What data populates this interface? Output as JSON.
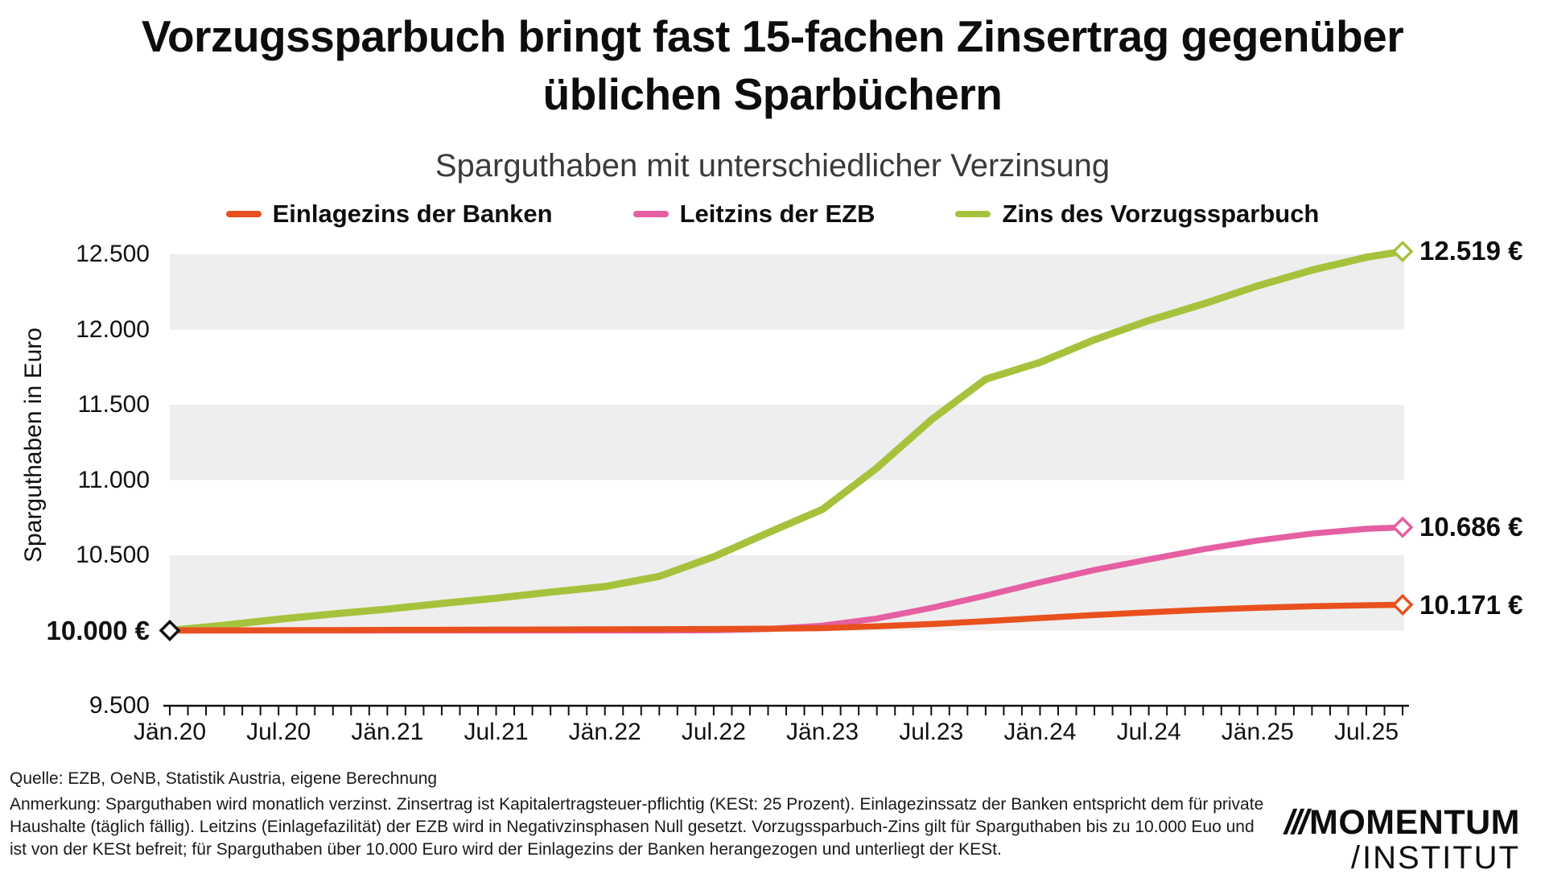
{
  "title_line1": "Vorzugssparbuch bringt fast 15-fachen Zinsertrag gegenüber",
  "title_line2": "üblichen Sparbüchern",
  "footer": {
    "source": "Quelle: EZB, OeNB, Statistik Austria, eigene Berechnung",
    "note": "Anmerkung: Sparguthaben wird monatlich verzinst. Zinsertrag ist Kapitalertragsteuer-pflichtig (KESt: 25 Prozent). Einlagezinssatz der Banken entspricht dem für private Haushalte (täglich fällig). Leitzins (Einlagefazilität) der EZB wird in Negativzinsphasen Null gesetzt. Vorzugssparbuch-Zins gilt für Sparguthaben bis zu 10.000 Euo und ist von der KESt befreit; für Sparguthaben über 10.000 Euro wird der Einlagezins der Banken herangezogen und unterliegt der KESt."
  },
  "logo": {
    "slashes": "///",
    "wordmark": "MOMENTUM",
    "unit_slash": "/",
    "unit": "INSTITUT"
  },
  "chart_data": {
    "type": "line",
    "title": "Sparguthaben mit unterschiedlicher Verzinsung",
    "ylabel": "Sparguthaben in Euro",
    "ylim": [
      9500,
      12500
    ],
    "band_color": "#eeeeee",
    "bands": [
      [
        12000,
        12500
      ],
      [
        11000,
        11500
      ],
      [
        10000,
        10500
      ]
    ],
    "x_unit": "Monate ab Jän.20",
    "x": [
      0,
      3,
      6,
      9,
      12,
      15,
      18,
      21,
      24,
      27,
      30,
      33,
      36,
      39,
      42,
      45,
      48,
      51,
      54,
      57,
      60,
      63,
      66,
      68
    ],
    "xticks": [
      {
        "month": 0,
        "label": "Jän.20"
      },
      {
        "month": 6,
        "label": "Jul.20"
      },
      {
        "month": 12,
        "label": "Jän.21"
      },
      {
        "month": 18,
        "label": "Jul.21"
      },
      {
        "month": 24,
        "label": "Jän.22"
      },
      {
        "month": 30,
        "label": "Jul.22"
      },
      {
        "month": 36,
        "label": "Jän.23"
      },
      {
        "month": 42,
        "label": "Jul.23"
      },
      {
        "month": 48,
        "label": "Jän.24"
      },
      {
        "month": 54,
        "label": "Jul.24"
      },
      {
        "month": 60,
        "label": "Jän.25"
      },
      {
        "month": 66,
        "label": "Jul.25"
      }
    ],
    "yticks": [
      {
        "value": 9500,
        "label": "9.500"
      },
      {
        "value": 10000,
        "label": "10.000 €",
        "major": true
      },
      {
        "value": 10500,
        "label": "10.500"
      },
      {
        "value": 11000,
        "label": "11.000"
      },
      {
        "value": 11500,
        "label": "11.500"
      },
      {
        "value": 12000,
        "label": "12.000"
      },
      {
        "value": 12500,
        "label": "12.500"
      }
    ],
    "start_marker": {
      "month": 0,
      "value": 10000,
      "label": "10.000 €",
      "color": "#111111"
    },
    "series": [
      {
        "id": "einlagezins-banken",
        "name": "Einlagezins der Banken",
        "color": "#e8501e",
        "end_label": "10.171 €",
        "values": [
          10000,
          10001,
          10002,
          10003,
          10004,
          10005,
          10006,
          10007,
          10008,
          10009,
          10010,
          10012,
          10016,
          10028,
          10043,
          10062,
          10083,
          10103,
          10121,
          10138,
          10151,
          10161,
          10168,
          10171
        ]
      },
      {
        "id": "leitzins-ezb",
        "name": "Leitzins der EZB",
        "color": "#e55fa2",
        "end_label": "10.686 €",
        "values": [
          10000,
          10000,
          10000,
          10000,
          10000,
          10000,
          10000,
          10000,
          10000,
          10000,
          10002,
          10010,
          10032,
          10080,
          10150,
          10232,
          10320,
          10402,
          10472,
          10540,
          10598,
          10644,
          10676,
          10686
        ]
      },
      {
        "id": "vorzugssparbuch",
        "name": "Zins des Vorzugssparbuch",
        "color": "#a6c23c",
        "end_label": "12.519 €",
        "values": [
          10000,
          10035,
          10075,
          10110,
          10142,
          10180,
          10215,
          10255,
          10292,
          10360,
          10490,
          10650,
          10805,
          11080,
          11400,
          11670,
          11782,
          11932,
          12060,
          12170,
          12290,
          12395,
          12480,
          12519
        ]
      }
    ]
  }
}
